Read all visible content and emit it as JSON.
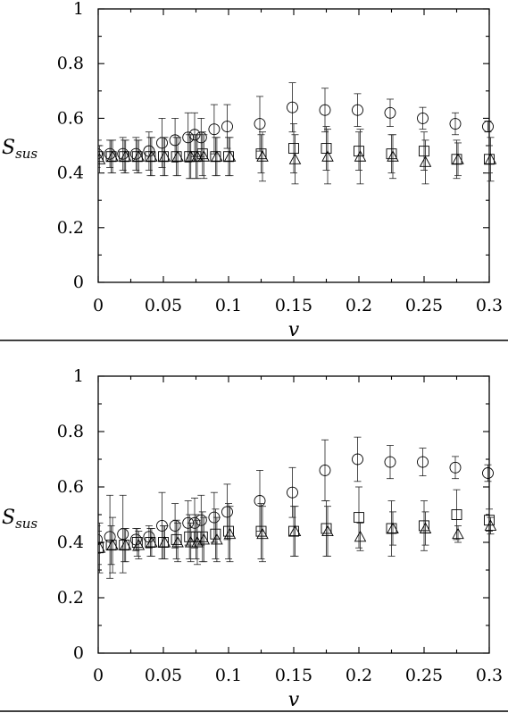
{
  "chart_data": [
    {
      "type": "scatter",
      "xlabel": "v",
      "ylabel_main": "S",
      "ylabel_sub": "sus",
      "xlim": [
        0,
        0.3
      ],
      "ylim": [
        0,
        1
      ],
      "xticks": [
        "0",
        "0.05",
        "0.1",
        "0.15",
        "0.2",
        "0.25",
        "0.3"
      ],
      "yticks": [
        "0",
        "0.2",
        "0.4",
        "0.6",
        "0.8",
        "1"
      ],
      "grid": false,
      "series": [
        {
          "marker": "circle",
          "points": [
            {
              "x": 0,
              "y": 0.47,
              "err": 0.05
            },
            {
              "x": 0.01,
              "y": 0.47,
              "err": 0.05
            },
            {
              "x": 0.02,
              "y": 0.47,
              "err": 0.06
            },
            {
              "x": 0.03,
              "y": 0.47,
              "err": 0.06
            },
            {
              "x": 0.04,
              "y": 0.48,
              "err": 0.07
            },
            {
              "x": 0.05,
              "y": 0.51,
              "err": 0.09
            },
            {
              "x": 0.06,
              "y": 0.52,
              "err": 0.08
            },
            {
              "x": 0.07,
              "y": 0.53,
              "err": 0.09
            },
            {
              "x": 0.075,
              "y": 0.54,
              "err": 0.08
            },
            {
              "x": 0.08,
              "y": 0.53,
              "err": 0.07
            },
            {
              "x": 0.09,
              "y": 0.56,
              "err": 0.09
            },
            {
              "x": 0.1,
              "y": 0.57,
              "err": 0.08
            },
            {
              "x": 0.125,
              "y": 0.58,
              "err": 0.1
            },
            {
              "x": 0.15,
              "y": 0.64,
              "err": 0.09
            },
            {
              "x": 0.175,
              "y": 0.63,
              "err": 0.08
            },
            {
              "x": 0.2,
              "y": 0.63,
              "err": 0.06
            },
            {
              "x": 0.225,
              "y": 0.62,
              "err": 0.05
            },
            {
              "x": 0.25,
              "y": 0.6,
              "err": 0.04
            },
            {
              "x": 0.275,
              "y": 0.58,
              "err": 0.04
            },
            {
              "x": 0.3,
              "y": 0.57,
              "err": 0.02
            }
          ]
        },
        {
          "marker": "square",
          "points": [
            {
              "x": 0,
              "y": 0.46,
              "err": 0.06
            },
            {
              "x": 0.01,
              "y": 0.46,
              "err": 0.06
            },
            {
              "x": 0.02,
              "y": 0.46,
              "err": 0.06
            },
            {
              "x": 0.03,
              "y": 0.46,
              "err": 0.06
            },
            {
              "x": 0.04,
              "y": 0.46,
              "err": 0.07
            },
            {
              "x": 0.05,
              "y": 0.46,
              "err": 0.07
            },
            {
              "x": 0.06,
              "y": 0.46,
              "err": 0.07
            },
            {
              "x": 0.07,
              "y": 0.46,
              "err": 0.08
            },
            {
              "x": 0.075,
              "y": 0.46,
              "err": 0.08
            },
            {
              "x": 0.08,
              "y": 0.47,
              "err": 0.08
            },
            {
              "x": 0.09,
              "y": 0.46,
              "err": 0.07
            },
            {
              "x": 0.1,
              "y": 0.46,
              "err": 0.07
            },
            {
              "x": 0.125,
              "y": 0.47,
              "err": 0.07
            },
            {
              "x": 0.15,
              "y": 0.49,
              "err": 0.09
            },
            {
              "x": 0.175,
              "y": 0.49,
              "err": 0.08
            },
            {
              "x": 0.2,
              "y": 0.48,
              "err": 0.07
            },
            {
              "x": 0.225,
              "y": 0.47,
              "err": 0.07
            },
            {
              "x": 0.25,
              "y": 0.48,
              "err": 0.07
            },
            {
              "x": 0.275,
              "y": 0.45,
              "err": 0.07
            },
            {
              "x": 0.3,
              "y": 0.45,
              "err": 0.05
            }
          ]
        },
        {
          "marker": "triangle",
          "points": [
            {
              "x": 0,
              "y": 0.45,
              "err": 0.05
            },
            {
              "x": 0.01,
              "y": 0.46,
              "err": 0.06
            },
            {
              "x": 0.02,
              "y": 0.46,
              "err": 0.06
            },
            {
              "x": 0.03,
              "y": 0.46,
              "err": 0.06
            },
            {
              "x": 0.04,
              "y": 0.46,
              "err": 0.07
            },
            {
              "x": 0.05,
              "y": 0.46,
              "err": 0.07
            },
            {
              "x": 0.06,
              "y": 0.46,
              "err": 0.07
            },
            {
              "x": 0.07,
              "y": 0.46,
              "err": 0.08
            },
            {
              "x": 0.075,
              "y": 0.46,
              "err": 0.08
            },
            {
              "x": 0.08,
              "y": 0.46,
              "err": 0.08
            },
            {
              "x": 0.09,
              "y": 0.46,
              "err": 0.07
            },
            {
              "x": 0.1,
              "y": 0.46,
              "err": 0.07
            },
            {
              "x": 0.125,
              "y": 0.46,
              "err": 0.09
            },
            {
              "x": 0.15,
              "y": 0.45,
              "err": 0.09
            },
            {
              "x": 0.175,
              "y": 0.46,
              "err": 0.1
            },
            {
              "x": 0.2,
              "y": 0.46,
              "err": 0.1
            },
            {
              "x": 0.225,
              "y": 0.46,
              "err": 0.08
            },
            {
              "x": 0.25,
              "y": 0.44,
              "err": 0.08
            },
            {
              "x": 0.275,
              "y": 0.45,
              "err": 0.06
            },
            {
              "x": 0.3,
              "y": 0.45,
              "err": 0.08
            }
          ]
        }
      ]
    },
    {
      "type": "scatter",
      "xlabel": "v",
      "ylabel_main": "S",
      "ylabel_sub": "sus",
      "xlim": [
        0,
        0.3
      ],
      "ylim": [
        0,
        1
      ],
      "xticks": [
        "0",
        "0.05",
        "0.1",
        "0.15",
        "0.2",
        "0.25",
        "0.3"
      ],
      "yticks": [
        "0",
        "0.2",
        "0.4",
        "0.6",
        "0.8",
        "1"
      ],
      "grid": false,
      "series": [
        {
          "marker": "circle",
          "points": [
            {
              "x": 0,
              "y": 0.41,
              "err": 0.05
            },
            {
              "x": 0.01,
              "y": 0.42,
              "err": 0.15
            },
            {
              "x": 0.02,
              "y": 0.43,
              "err": 0.14
            },
            {
              "x": 0.03,
              "y": 0.41,
              "err": 0.04
            },
            {
              "x": 0.04,
              "y": 0.42,
              "err": 0.04
            },
            {
              "x": 0.05,
              "y": 0.46,
              "err": 0.12
            },
            {
              "x": 0.06,
              "y": 0.46,
              "err": 0.08
            },
            {
              "x": 0.07,
              "y": 0.47,
              "err": 0.08
            },
            {
              "x": 0.075,
              "y": 0.47,
              "err": 0.09
            },
            {
              "x": 0.08,
              "y": 0.48,
              "err": 0.09
            },
            {
              "x": 0.09,
              "y": 0.49,
              "err": 0.09
            },
            {
              "x": 0.1,
              "y": 0.51,
              "err": 0.1
            },
            {
              "x": 0.125,
              "y": 0.55,
              "err": 0.11
            },
            {
              "x": 0.15,
              "y": 0.58,
              "err": 0.09
            },
            {
              "x": 0.175,
              "y": 0.66,
              "err": 0.11
            },
            {
              "x": 0.2,
              "y": 0.7,
              "err": 0.08
            },
            {
              "x": 0.225,
              "y": 0.69,
              "err": 0.06
            },
            {
              "x": 0.25,
              "y": 0.69,
              "err": 0.05
            },
            {
              "x": 0.275,
              "y": 0.67,
              "err": 0.04
            },
            {
              "x": 0.3,
              "y": 0.65,
              "err": 0.03
            }
          ]
        },
        {
          "marker": "square",
          "points": [
            {
              "x": 0,
              "y": 0.38,
              "err": 0.06
            },
            {
              "x": 0.01,
              "y": 0.39,
              "err": 0.07
            },
            {
              "x": 0.02,
              "y": 0.39,
              "err": 0.06
            },
            {
              "x": 0.03,
              "y": 0.4,
              "err": 0.05
            },
            {
              "x": 0.04,
              "y": 0.4,
              "err": 0.05
            },
            {
              "x": 0.05,
              "y": 0.4,
              "err": 0.06
            },
            {
              "x": 0.06,
              "y": 0.41,
              "err": 0.07
            },
            {
              "x": 0.07,
              "y": 0.42,
              "err": 0.08
            },
            {
              "x": 0.075,
              "y": 0.42,
              "err": 0.08
            },
            {
              "x": 0.08,
              "y": 0.42,
              "err": 0.09
            },
            {
              "x": 0.09,
              "y": 0.43,
              "err": 0.09
            },
            {
              "x": 0.1,
              "y": 0.44,
              "err": 0.1
            },
            {
              "x": 0.125,
              "y": 0.44,
              "err": 0.1
            },
            {
              "x": 0.15,
              "y": 0.44,
              "err": 0.09
            },
            {
              "x": 0.175,
              "y": 0.45,
              "err": 0.1
            },
            {
              "x": 0.2,
              "y": 0.49,
              "err": 0.11
            },
            {
              "x": 0.225,
              "y": 0.45,
              "err": 0.1
            },
            {
              "x": 0.25,
              "y": 0.46,
              "err": 0.09
            },
            {
              "x": 0.275,
              "y": 0.5,
              "err": 0.09
            },
            {
              "x": 0.3,
              "y": 0.48,
              "err": 0.04
            }
          ]
        },
        {
          "marker": "triangle",
          "points": [
            {
              "x": 0,
              "y": 0.38,
              "err": 0.09
            },
            {
              "x": 0.01,
              "y": 0.39,
              "err": 0.1
            },
            {
              "x": 0.02,
              "y": 0.39,
              "err": 0.06
            },
            {
              "x": 0.03,
              "y": 0.39,
              "err": 0.05
            },
            {
              "x": 0.04,
              "y": 0.4,
              "err": 0.05
            },
            {
              "x": 0.05,
              "y": 0.4,
              "err": 0.06
            },
            {
              "x": 0.06,
              "y": 0.4,
              "err": 0.07
            },
            {
              "x": 0.07,
              "y": 0.4,
              "err": 0.07
            },
            {
              "x": 0.075,
              "y": 0.4,
              "err": 0.08
            },
            {
              "x": 0.08,
              "y": 0.41,
              "err": 0.08
            },
            {
              "x": 0.09,
              "y": 0.41,
              "err": 0.08
            },
            {
              "x": 0.1,
              "y": 0.43,
              "err": 0.1
            },
            {
              "x": 0.125,
              "y": 0.43,
              "err": 0.1
            },
            {
              "x": 0.15,
              "y": 0.44,
              "err": 0.09
            },
            {
              "x": 0.175,
              "y": 0.44,
              "err": 0.09
            },
            {
              "x": 0.2,
              "y": 0.42,
              "err": 0.05
            },
            {
              "x": 0.225,
              "y": 0.45,
              "err": 0.06
            },
            {
              "x": 0.25,
              "y": 0.45,
              "err": 0.06
            },
            {
              "x": 0.275,
              "y": 0.43,
              "err": 0.03
            },
            {
              "x": 0.3,
              "y": 0.46,
              "err": 0.03
            }
          ]
        }
      ]
    }
  ]
}
